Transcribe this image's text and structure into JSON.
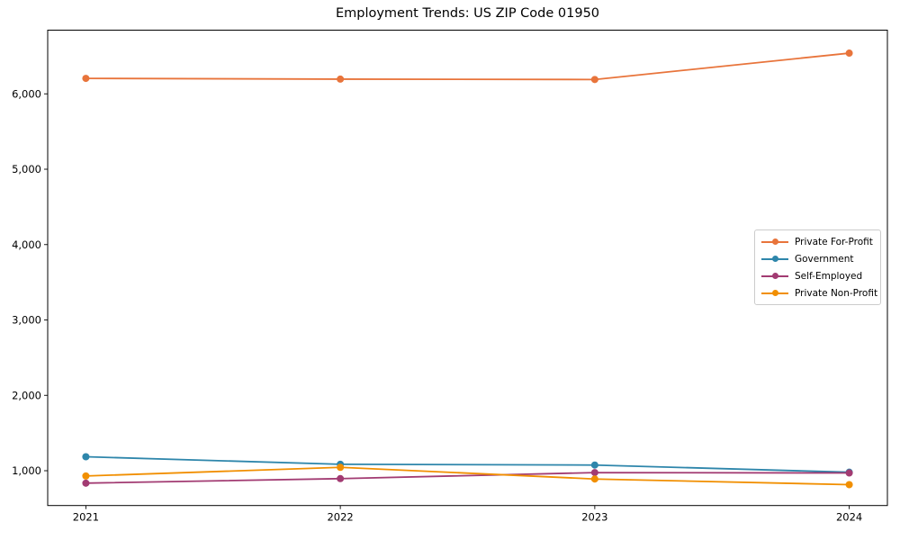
{
  "chart_data": {
    "type": "line",
    "title": "Employment Trends: US ZIP Code 01950",
    "x": [
      2021,
      2022,
      2023,
      2024
    ],
    "x_tick_labels": [
      "2021",
      "2022",
      "2023",
      "2024"
    ],
    "y_ticks": [
      1000,
      2000,
      3000,
      4000,
      5000,
      6000
    ],
    "y_tick_labels": [
      "1,000",
      "2,000",
      "3,000",
      "4,000",
      "5,000",
      "6,000"
    ],
    "xlim": [
      2020.85,
      2024.15
    ],
    "ylim": [
      538,
      6845
    ],
    "grid": false,
    "legend_position": "center-right",
    "marker": "circle",
    "series": [
      {
        "name": "Private For-Profit",
        "color": "#E8743B",
        "values": [
          6205,
          6195,
          6190,
          6540
        ]
      },
      {
        "name": "Government",
        "color": "#2E86AB",
        "values": [
          1185,
          1085,
          1075,
          980
        ]
      },
      {
        "name": "Self-Employed",
        "color": "#A23B72",
        "values": [
          835,
          895,
          975,
          970
        ]
      },
      {
        "name": "Private Non-Profit",
        "color": "#F18F01",
        "values": [
          930,
          1045,
          890,
          815
        ]
      }
    ]
  }
}
